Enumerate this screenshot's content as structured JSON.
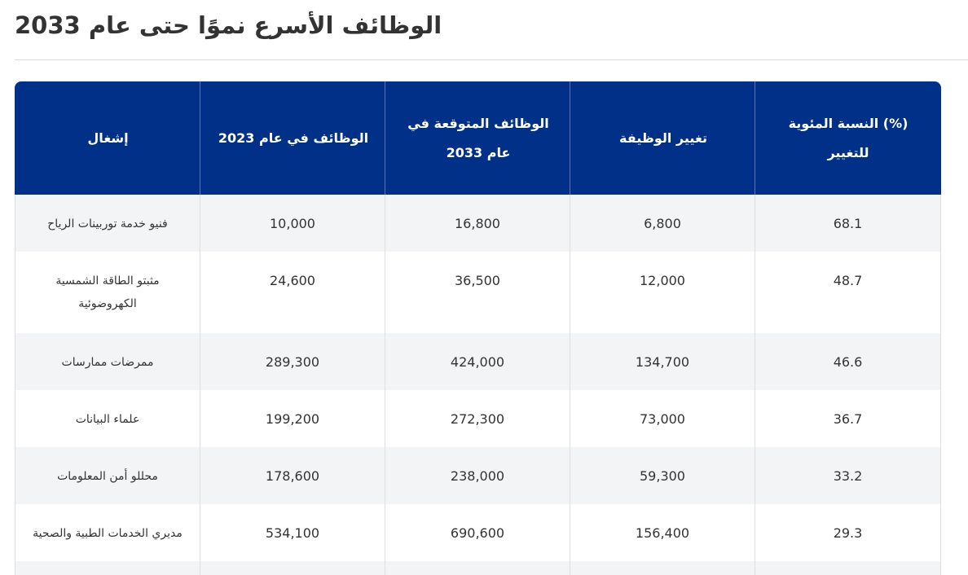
{
  "title": "الوظائف الأسرع نموًا حتى عام 2033",
  "table": {
    "headers": {
      "occupation": "إشغال",
      "jobs_2023": "الوظائف في عام 2023",
      "jobs_2033": "الوظائف المتوقعة في عام 2033",
      "job_change": "تغيير الوظيفة",
      "percent_change": "(%) النسبة المئوية للتغيير"
    },
    "rows": [
      {
        "occupation": "فنيو خدمة توربينات الرياح",
        "jobs_2023": "10,000",
        "jobs_2033": "16,800",
        "job_change": "6,800",
        "percent_change": "68.1"
      },
      {
        "occupation": "مثبتو الطاقة الشمسية الكهروضوئية",
        "jobs_2023": "24,600",
        "jobs_2033": "36,500",
        "job_change": "12,000",
        "percent_change": "48.7"
      },
      {
        "occupation": "ممرضات ممارسات",
        "jobs_2023": "289,300",
        "jobs_2033": "424,000",
        "job_change": "134,700",
        "percent_change": "46.6"
      },
      {
        "occupation": "علماء البيانات",
        "jobs_2023": "199,200",
        "jobs_2033": "272,300",
        "job_change": "73,000",
        "percent_change": "36.7"
      },
      {
        "occupation": "محللو أمن المعلومات",
        "jobs_2023": "178,600",
        "jobs_2033": "238,000",
        "job_change": "59,300",
        "percent_change": "33.2"
      },
      {
        "occupation": "مديري الخدمات الطبية والصحية",
        "jobs_2023": "534,100",
        "jobs_2033": "690,600",
        "job_change": "156,400",
        "percent_change": "29.3"
      }
    ]
  },
  "colors": {
    "header_bg": "#003087",
    "header_text": "#ffffff",
    "row_alt_bg": "#f3f4f6"
  }
}
